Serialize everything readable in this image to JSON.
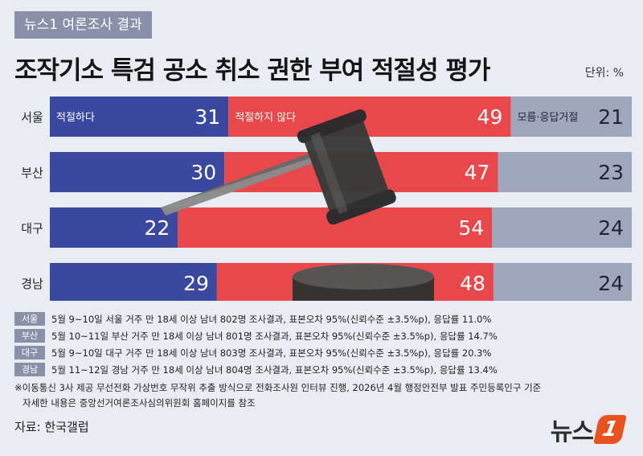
{
  "header": {
    "kicker": "뉴스1 여론조사 결과",
    "title": "조작기소 특검 공소 취소 권한 부여 적절성 평가",
    "unit": "단위: %"
  },
  "colors": {
    "appropriate": "#3b48a0",
    "not_appropriate": "#e8484b",
    "unknown": "#a0a7bd",
    "tag": "#8a90a8"
  },
  "chart_data": {
    "type": "bar",
    "stacked": true,
    "orientation": "horizontal",
    "categories": [
      "서울",
      "부산",
      "대구",
      "경남"
    ],
    "series": [
      {
        "name": "적절하다",
        "values": [
          31,
          30,
          22,
          29
        ]
      },
      {
        "name": "적절하지 않다",
        "values": [
          49,
          47,
          54,
          48
        ]
      },
      {
        "name": "모름·응답거절",
        "values": [
          21,
          23,
          24,
          24
        ]
      }
    ],
    "unit": "%"
  },
  "notes": [
    {
      "tag": "서울",
      "text": "5월 9~10일 서울 거주 만 18세 이상 남녀 802명 조사결과, 표본오차 95%(신뢰수준 ±3.5%p), 응답률 11.0%"
    },
    {
      "tag": "부산",
      "text": "5월 10~11일 부산 거주 만 18세 이상 남녀 801명 조사결과, 표본오차 95%(신뢰수준 ±3.5%p), 응답률  14.7%"
    },
    {
      "tag": "대구",
      "text": "5월 9~10일 대구 거주 만 18세 이상 남녀 803명 조사결과, 표본오차 95%(신뢰수준 ±3.5%p), 응답률 20.3%"
    },
    {
      "tag": "경남",
      "text": "5월 11~12일 경남 거주 만 18세 이상 남녀 804명 조사결과, 표본오차 95%(신뢰수준 ±3.5%p), 응답률 13.4%"
    }
  ],
  "footnote_1": "※이동통신 3사 제공 무선전화 가상번호 무작위 추출 방식으로 전화조사원 인터뷰 진행, 2026년 4월 행정안전부 발표 주민등록인구 기준",
  "footnote_2": "자세한 내용은 중앙선거여론조사심의위원회 홈페이지를 참조",
  "source": "자료: 한국갤럽",
  "logo": {
    "text": "뉴스",
    "mark": "1"
  }
}
